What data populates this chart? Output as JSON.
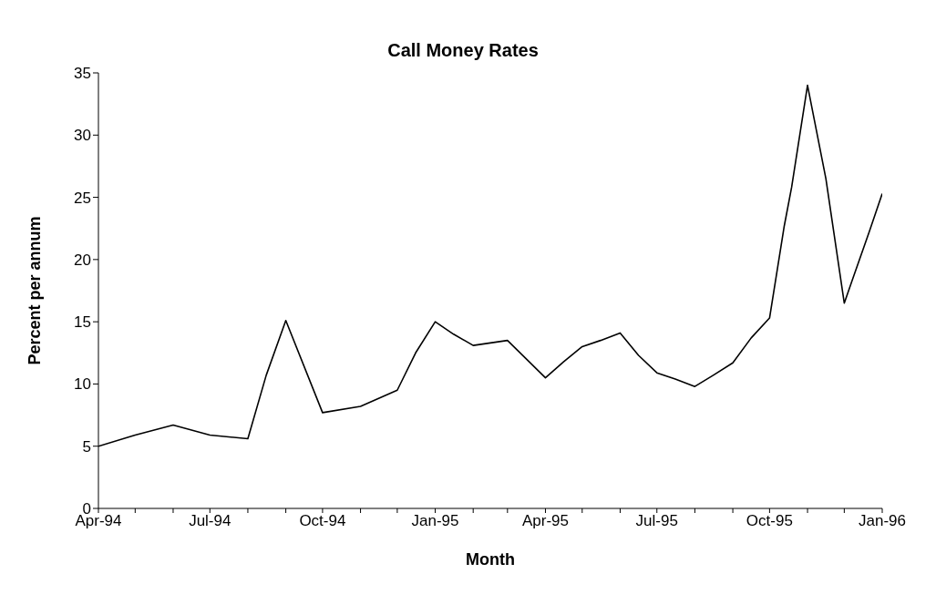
{
  "chart_data": {
    "type": "line",
    "title": "Call Money Rates",
    "xlabel": "Month",
    "ylabel": "Percent per annum",
    "x": [
      "1994-04-01",
      "1994-05-01",
      "1994-06-01",
      "1994-07-01",
      "1994-08-01",
      "1994-08-16",
      "1994-09-01",
      "1994-10-01",
      "1994-11-01",
      "1994-12-01",
      "1994-12-16",
      "1995-01-01",
      "1995-01-16",
      "1995-02-01",
      "1995-03-01",
      "1995-04-01",
      "1995-04-16",
      "1995-05-01",
      "1995-05-16",
      "1995-06-01",
      "1995-06-16",
      "1995-07-01",
      "1995-07-16",
      "1995-08-01",
      "1995-08-16",
      "1995-09-01",
      "1995-09-16",
      "1995-10-01",
      "1995-10-13",
      "1995-10-19",
      "1995-11-01",
      "1995-11-16",
      "1995-12-01",
      "1995-12-07",
      "1995-12-22",
      "1996-01-01"
    ],
    "series": [
      {
        "color": "#000000",
        "values": [
          5.0,
          5.9,
          6.7,
          5.9,
          5.6,
          10.7,
          15.1,
          7.7,
          8.2,
          9.5,
          12.5,
          15.0,
          14.0,
          13.1,
          13.5,
          10.5,
          11.8,
          13.0,
          13.5,
          14.1,
          12.3,
          10.9,
          10.4,
          9.8,
          10.7,
          11.7,
          13.7,
          15.3,
          22.7,
          25.8,
          34.0,
          26.5,
          16.5,
          18.2,
          22.4,
          25.3
        ]
      }
    ],
    "xlim": [
      "1994-04-01",
      "1996-01-01"
    ],
    "xticks": [
      {
        "value": "1994-04-01",
        "label": "Apr-94"
      },
      {
        "value": "1994-05-01",
        "label": null
      },
      {
        "value": "1994-06-01",
        "label": null
      },
      {
        "value": "1994-07-01",
        "label": "Jul-94"
      },
      {
        "value": "1994-08-01",
        "label": null
      },
      {
        "value": "1994-09-01",
        "label": null
      },
      {
        "value": "1994-10-01",
        "label": "Oct-94"
      },
      {
        "value": "1994-11-01",
        "label": null
      },
      {
        "value": "1994-12-01",
        "label": null
      },
      {
        "value": "1995-01-01",
        "label": "Jan-95"
      },
      {
        "value": "1995-02-01",
        "label": null
      },
      {
        "value": "1995-03-01",
        "label": null
      },
      {
        "value": "1995-04-01",
        "label": "Apr-95"
      },
      {
        "value": "1995-05-01",
        "label": null
      },
      {
        "value": "1995-06-01",
        "label": null
      },
      {
        "value": "1995-07-01",
        "label": "Jul-95"
      },
      {
        "value": "1995-08-01",
        "label": null
      },
      {
        "value": "1995-09-01",
        "label": null
      },
      {
        "value": "1995-10-01",
        "label": "Oct-95"
      },
      {
        "value": "1995-11-01",
        "label": null
      },
      {
        "value": "1995-12-01",
        "label": null
      },
      {
        "value": "1996-01-01",
        "label": "Jan-96"
      }
    ],
    "ylim": [
      0,
      35
    ],
    "yticks": [
      0,
      5,
      10,
      15,
      20,
      25,
      30,
      35
    ],
    "marker": "none",
    "line_style": "solid"
  }
}
